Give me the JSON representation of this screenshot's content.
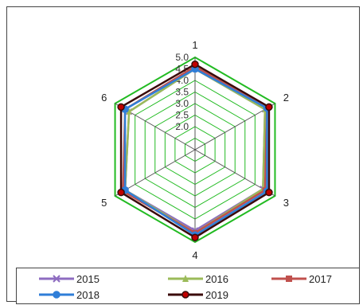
{
  "chart_data": {
    "type": "radar",
    "title": "",
    "axes": [
      "1",
      "2",
      "3",
      "4",
      "5",
      "6"
    ],
    "rlim": [
      1.0,
      5.0
    ],
    "r_ticks": [
      "2.0",
      "2.5",
      "3.0",
      "3.5",
      "4.0",
      "4.5",
      "5.0"
    ],
    "grid": true,
    "grid_color": "#22bb22",
    "series": [
      {
        "name": "2015",
        "color": "#8e6cc0",
        "marker": "x",
        "values": [
          4.5,
          4.5,
          4.4,
          4.5,
          4.5,
          4.3
        ]
      },
      {
        "name": "2016",
        "color": "#9bbb59",
        "marker": "triangle",
        "values": [
          4.5,
          4.5,
          4.4,
          4.6,
          4.5,
          4.3
        ]
      },
      {
        "name": "2017",
        "color": "#c0504d",
        "marker": "square",
        "values": [
          4.6,
          4.6,
          4.5,
          4.6,
          4.6,
          4.5
        ]
      },
      {
        "name": "2018",
        "color": "#2f7ed8",
        "marker": "circle",
        "values": [
          4.5,
          4.6,
          4.6,
          4.7,
          4.5,
          4.5
        ]
      },
      {
        "name": "2019",
        "color": "#3a0a0a",
        "marker": "circle",
        "values": [
          4.7,
          4.7,
          4.7,
          4.8,
          4.7,
          4.7
        ]
      }
    ],
    "legend_position": "bottom"
  }
}
